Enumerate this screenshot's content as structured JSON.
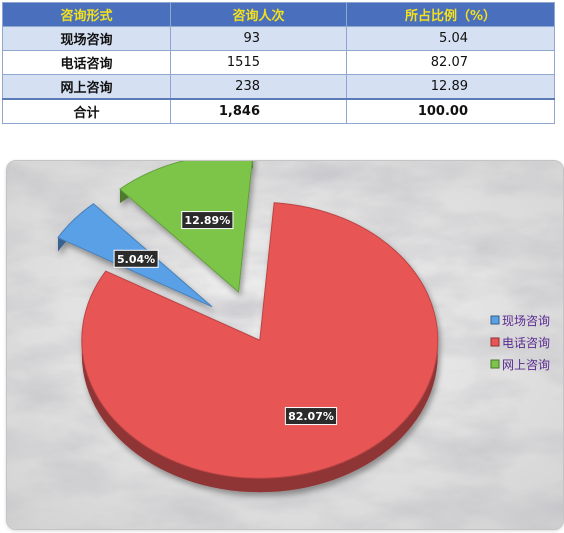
{
  "table": {
    "headers": [
      "咨询形式",
      "咨询人次",
      "所占比例（%）"
    ],
    "rows": [
      {
        "label": "现场咨询",
        "count": "93",
        "pct": "5.04"
      },
      {
        "label": "电话咨询",
        "count": "1515",
        "pct": "82.07"
      },
      {
        "label": "网上咨询",
        "count": "238",
        "pct": "12.89"
      }
    ],
    "total": {
      "label": "合计",
      "count": "1,846",
      "pct": "100.00"
    }
  },
  "chart_data": {
    "type": "pie",
    "title": "",
    "labels": [
      "现场咨询",
      "电话咨询",
      "网上咨询"
    ],
    "values": [
      5.04,
      82.07,
      12.89
    ],
    "data_labels": [
      "5.04%",
      "82.07%",
      "12.89%"
    ],
    "legend_position": "right",
    "colors": [
      "#5aa0e6",
      "#e85555",
      "#7cc54a"
    ],
    "exploded": true,
    "style": "3d"
  }
}
